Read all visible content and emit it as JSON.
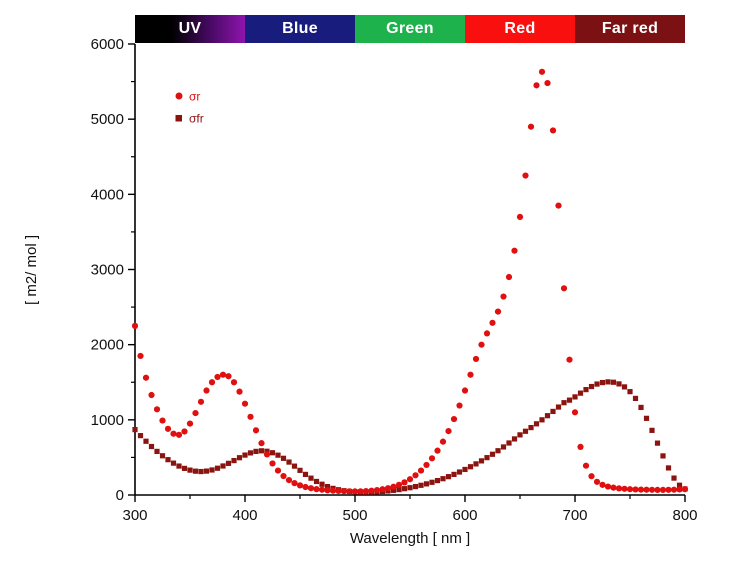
{
  "figure": {
    "x_axis_label": "Wavelength [ nm ]",
    "y_axis_label": "[ m2/ mol ]"
  },
  "bands": [
    {
      "label": "UV",
      "colors": [
        "#000000",
        "#000000",
        "#44095f",
        "#8e14ae"
      ]
    },
    {
      "label": "Blue",
      "colors": [
        "#171c7d"
      ]
    },
    {
      "label": "Green",
      "colors": [
        "#1eb24d"
      ]
    },
    {
      "label": "Red",
      "colors": [
        "#fa0f0f"
      ]
    },
    {
      "label": "Far red",
      "colors": [
        "#7c1113"
      ]
    }
  ],
  "legend": [
    {
      "label": "σr",
      "marker": "circle",
      "color": "#e01010"
    },
    {
      "label": "σfr",
      "marker": "square",
      "color": "#8b1410"
    }
  ],
  "chart_data": {
    "type": "scatter",
    "title": "",
    "xlabel": "Wavelength [ nm ]",
    "ylabel": "[ m2/ mol ]",
    "xlim": [
      300,
      800
    ],
    "ylim": [
      0,
      6000
    ],
    "xticks": [
      300,
      400,
      500,
      600,
      700,
      800
    ],
    "yticks": [
      0,
      1000,
      2000,
      3000,
      4000,
      5000,
      6000
    ],
    "x_minor_step": 50,
    "y_minor_step": 500,
    "grid": false,
    "legend_position": "upper-left",
    "x": [
      300,
      305,
      310,
      315,
      320,
      325,
      330,
      335,
      340,
      345,
      350,
      355,
      360,
      365,
      370,
      375,
      380,
      385,
      390,
      395,
      400,
      405,
      410,
      415,
      420,
      425,
      430,
      435,
      440,
      445,
      450,
      455,
      460,
      465,
      470,
      475,
      480,
      485,
      490,
      495,
      500,
      505,
      510,
      515,
      520,
      525,
      530,
      535,
      540,
      545,
      550,
      555,
      560,
      565,
      570,
      575,
      580,
      585,
      590,
      595,
      600,
      605,
      610,
      615,
      620,
      625,
      630,
      635,
      640,
      645,
      650,
      655,
      660,
      665,
      670,
      675,
      680,
      685,
      690,
      695,
      700,
      705,
      710,
      715,
      720,
      725,
      730,
      735,
      740,
      745,
      750,
      755,
      760,
      765,
      770,
      775,
      780,
      785,
      790,
      795,
      800
    ],
    "series": [
      {
        "name": "σr",
        "marker": "circle",
        "color": "#e01010",
        "values": [
          2250,
          1850,
          1560,
          1330,
          1140,
          990,
          880,
          815,
          800,
          845,
          950,
          1090,
          1240,
          1390,
          1500,
          1570,
          1600,
          1580,
          1500,
          1375,
          1215,
          1040,
          860,
          690,
          540,
          420,
          325,
          252,
          198,
          158,
          128,
          106,
          90,
          78,
          70,
          63,
          58,
          54,
          51,
          49,
          48,
          49,
          52,
          57,
          65,
          76,
          90,
          110,
          135,
          168,
          210,
          262,
          325,
          400,
          488,
          590,
          710,
          850,
          1010,
          1190,
          1390,
          1600,
          1810,
          2000,
          2150,
          2290,
          2440,
          2640,
          2900,
          3250,
          3700,
          4250,
          4900,
          5450,
          5630,
          5480,
          4850,
          3850,
          2750,
          1800,
          1100,
          640,
          390,
          250,
          175,
          135,
          112,
          98,
          88,
          82,
          77,
          74,
          72,
          70,
          69,
          68,
          68,
          69,
          71,
          74,
          78
        ]
      },
      {
        "name": "σfr",
        "marker": "square",
        "color": "#8b1410",
        "values": [
          870,
          790,
          715,
          645,
          580,
          522,
          470,
          424,
          385,
          354,
          331,
          317,
          312,
          318,
          333,
          356,
          386,
          421,
          458,
          496,
          531,
          560,
          580,
          588,
          582,
          562,
          530,
          488,
          438,
          384,
          328,
          274,
          224,
          180,
          143,
          112,
          88,
          70,
          57,
          48,
          42,
          39,
          38,
          39,
          42,
          47,
          54,
          62,
          72,
          84,
          97,
          112,
          129,
          148,
          169,
          192,
          217,
          244,
          274,
          306,
          340,
          376,
          414,
          454,
          497,
          542,
          589,
          639,
          692,
          746,
          800,
          848,
          897,
          947,
          1000,
          1055,
          1112,
          1170,
          1228,
          1262,
          1305,
          1355,
          1402,
          1443,
          1476,
          1496,
          1505,
          1500,
          1478,
          1438,
          1375,
          1285,
          1165,
          1020,
          860,
          690,
          520,
          360,
          225,
          130,
          80
        ]
      }
    ]
  }
}
